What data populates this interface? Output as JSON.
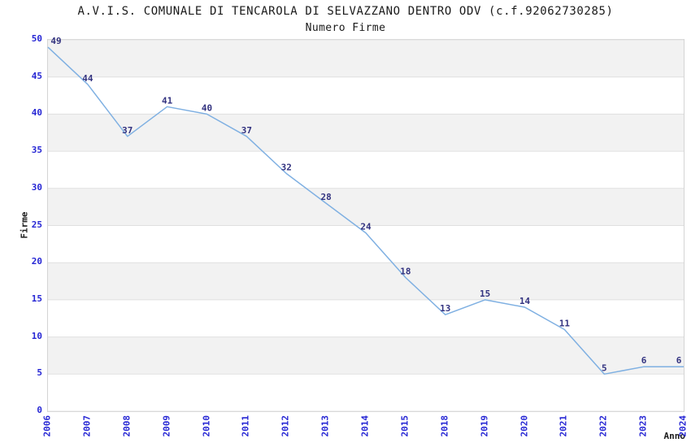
{
  "chart_data": {
    "type": "line",
    "title": "A.V.I.S. COMUNALE DI TENCAROLA DI SELVAZZANO DENTRO ODV (c.f.92062730285)",
    "subtitle": "Numero Firme",
    "xlabel": "Anno",
    "ylabel": "Firme",
    "categories": [
      "2006",
      "2007",
      "2008",
      "2009",
      "2010",
      "2011",
      "2012",
      "2013",
      "2014",
      "2015",
      "2018",
      "2019",
      "2020",
      "2021",
      "2022",
      "2023",
      "2024"
    ],
    "values": [
      49,
      44,
      37,
      41,
      40,
      37,
      32,
      28,
      24,
      18,
      13,
      15,
      14,
      11,
      5,
      6,
      6
    ],
    "series_name": "Numero Firme",
    "y_ticks": [
      0,
      5,
      10,
      15,
      20,
      25,
      30,
      35,
      40,
      45,
      50
    ],
    "ylim": [
      0,
      50
    ],
    "grid": "horizontal alternating bands with light gridlines",
    "legend": "none",
    "point_labels_shown": true,
    "colors": {
      "line": "#7fb0e2",
      "point_label": "#333380",
      "tick_label": "#2626d4",
      "band": "#f2f2f2",
      "grid_line": "#e0e0e0",
      "plot_border": "#d4d4d4",
      "axis_text": "#1a1a1a",
      "background": "#ffffff"
    }
  }
}
